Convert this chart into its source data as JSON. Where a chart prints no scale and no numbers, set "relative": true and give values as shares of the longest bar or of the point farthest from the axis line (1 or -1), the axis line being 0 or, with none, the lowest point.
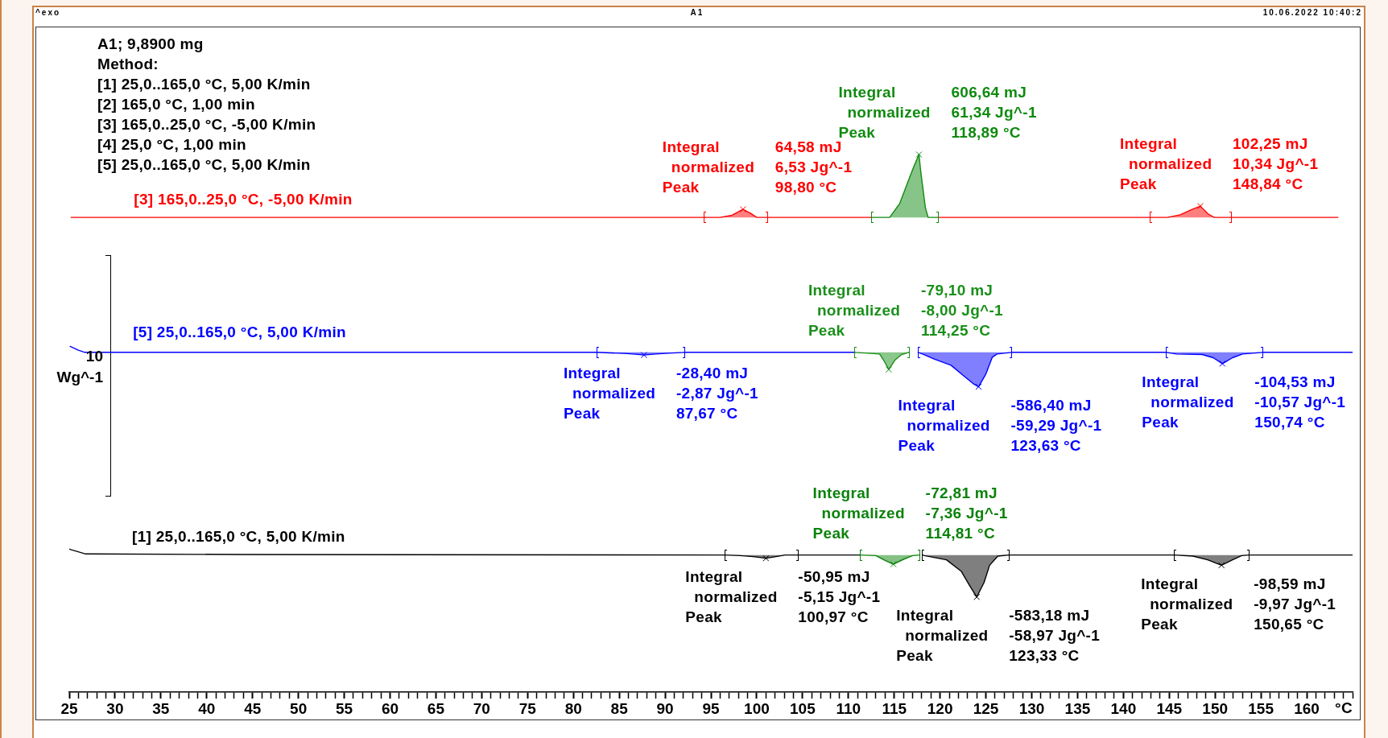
{
  "chart_data": {
    "type": "line",
    "title": "A1",
    "xlabel": "°C",
    "ylabel": "10\nWg^-1",
    "relative": true,
    "xlim": [
      25,
      165
    ],
    "xticks": [
      25,
      {
        "value": 26,
        "label": null
      },
      {
        "value": 27,
        "label": null
      },
      {
        "value": 28,
        "label": null
      },
      {
        "value": 29,
        "label": null
      },
      30,
      {
        "value": 31,
        "label": null
      },
      {
        "value": 32,
        "label": null
      },
      {
        "value": 33,
        "label": null
      },
      {
        "value": 34,
        "label": null
      },
      35,
      {
        "value": 36,
        "label": null
      },
      {
        "value": 37,
        "label": null
      },
      {
        "value": 38,
        "label": null
      },
      {
        "value": 39,
        "label": null
      },
      40,
      {
        "value": 41,
        "label": null
      },
      {
        "value": 42,
        "label": null
      },
      {
        "value": 43,
        "label": null
      },
      {
        "value": 44,
        "label": null
      },
      45,
      {
        "value": 46,
        "label": null
      },
      {
        "value": 47,
        "label": null
      },
      {
        "value": 48,
        "label": null
      },
      {
        "value": 49,
        "label": null
      },
      50,
      {
        "value": 51,
        "label": null
      },
      {
        "value": 52,
        "label": null
      },
      {
        "value": 53,
        "label": null
      },
      {
        "value": 54,
        "label": null
      },
      55,
      {
        "value": 56,
        "label": null
      },
      {
        "value": 57,
        "label": null
      },
      {
        "value": 58,
        "label": null
      },
      {
        "value": 59,
        "label": null
      },
      60,
      {
        "value": 61,
        "label": null
      },
      {
        "value": 62,
        "label": null
      },
      {
        "value": 63,
        "label": null
      },
      {
        "value": 64,
        "label": null
      },
      65,
      {
        "value": 66,
        "label": null
      },
      {
        "value": 67,
        "label": null
      },
      {
        "value": 68,
        "label": null
      },
      {
        "value": 69,
        "label": null
      },
      70,
      {
        "value": 71,
        "label": null
      },
      {
        "value": 72,
        "label": null
      },
      {
        "value": 73,
        "label": null
      },
      {
        "value": 74,
        "label": null
      },
      75,
      {
        "value": 76,
        "label": null
      },
      {
        "value": 77,
        "label": null
      },
      {
        "value": 78,
        "label": null
      },
      {
        "value": 79,
        "label": null
      },
      80,
      {
        "value": 81,
        "label": null
      },
      {
        "value": 82,
        "label": null
      },
      {
        "value": 83,
        "label": null
      },
      {
        "value": 84,
        "label": null
      },
      85,
      {
        "value": 86,
        "label": null
      },
      {
        "value": 87,
        "label": null
      },
      {
        "value": 88,
        "label": null
      },
      {
        "value": 89,
        "label": null
      },
      90,
      {
        "value": 91,
        "label": null
      },
      {
        "value": 92,
        "label": null
      },
      {
        "value": 93,
        "label": null
      },
      {
        "value": 94,
        "label": null
      },
      95,
      {
        "value": 96,
        "label": null
      },
      {
        "value": 97,
        "label": null
      },
      {
        "value": 98,
        "label": null
      },
      {
        "value": 99,
        "label": null
      },
      100,
      {
        "value": 101,
        "label": null
      },
      {
        "value": 102,
        "label": null
      },
      {
        "value": 103,
        "label": null
      },
      {
        "value": 104,
        "label": null
      },
      105,
      {
        "value": 106,
        "label": null
      },
      {
        "value": 107,
        "label": null
      },
      {
        "value": 108,
        "label": null
      },
      {
        "value": 109,
        "label": null
      },
      110,
      {
        "value": 111,
        "label": null
      },
      {
        "value": 112,
        "label": null
      },
      {
        "value": 113,
        "label": null
      },
      {
        "value": 114,
        "label": null
      },
      115,
      {
        "value": 116,
        "label": null
      },
      {
        "value": 117,
        "label": null
      },
      {
        "value": 118,
        "label": null
      },
      {
        "value": 119,
        "label": null
      },
      120,
      {
        "value": 121,
        "label": null
      },
      {
        "value": 122,
        "label": null
      },
      {
        "value": 123,
        "label": null
      },
      {
        "value": 124,
        "label": null
      },
      125,
      {
        "value": 126,
        "label": null
      },
      {
        "value": 127,
        "label": null
      },
      {
        "value": 128,
        "label": null
      },
      {
        "value": 129,
        "label": null
      },
      130,
      {
        "value": 131,
        "label": null
      },
      {
        "value": 132,
        "label": null
      },
      {
        "value": 133,
        "label": null
      },
      {
        "value": 134,
        "label": null
      },
      135,
      {
        "value": 136,
        "label": null
      },
      {
        "value": 137,
        "label": null
      },
      {
        "value": 138,
        "label": null
      },
      {
        "value": 139,
        "label": null
      },
      140,
      {
        "value": 141,
        "label": null
      },
      {
        "value": 142,
        "label": null
      },
      {
        "value": 143,
        "label": null
      },
      {
        "value": 144,
        "label": null
      },
      145,
      {
        "value": 146,
        "label": null
      },
      {
        "value": 147,
        "label": null
      },
      {
        "value": 148,
        "label": null
      },
      {
        "value": 149,
        "label": null
      },
      150,
      {
        "value": 151,
        "label": null
      },
      {
        "value": 152,
        "label": null
      },
      {
        "value": 153,
        "label": null
      },
      {
        "value": 154,
        "label": null
      },
      155,
      {
        "value": 156,
        "label": null
      },
      {
        "value": 157,
        "label": null
      },
      {
        "value": 158,
        "label": null
      },
      {
        "value": 159,
        "label": null
      },
      160,
      {
        "value": 161,
        "label": null
      },
      {
        "value": 162,
        "label": null
      },
      {
        "value": 163,
        "label": null
      },
      {
        "value": 164,
        "label": null
      },
      {
        "value": 165,
        "label": null
      }
    ],
    "series": [
      {
        "name": "[3] 165,0..25,0 °C, -5,00 K/min",
        "color": "#ff0000",
        "x": [
          25.2,
          94.3,
          97.8,
          101.2,
          112.5,
          116,
          119.8,
          142.9,
          147.4,
          151.8,
          163.4
        ],
        "values": [
          0.883,
          0.883,
          null,
          0.883,
          0.883,
          null,
          0.883,
          0.883,
          null,
          0.883,
          0.883
        ]
      },
      {
        "color": "#ff0000",
        "type": "area",
        "x": [
          94.3,
          96.0,
          97.3,
          98.5,
          99.3,
          100.0,
          101.2
        ],
        "values": [
          0.883,
          0.883,
          0.887,
          0.898,
          0.891,
          0.883,
          0.883
        ]
      },
      {
        "color": "#0f8a0f",
        "type": "area",
        "x": [
          112.5,
          114.5,
          115.6,
          116.6,
          117.1,
          117.7,
          117.9,
          118.4,
          118.7,
          119.8
        ],
        "values": [
          0.883,
          0.883,
          0.909,
          0.954,
          0.976,
          1.0,
          0.967,
          0.901,
          0.883,
          0.883
        ]
      },
      {
        "color": "#ff0000",
        "type": "area",
        "x": [
          142.9,
          144.8,
          146.2,
          147.5,
          148.4,
          149.2,
          149.9,
          151.8
        ],
        "values": [
          0.883,
          0.883,
          0.888,
          0.898,
          0.904,
          0.89,
          0.883,
          0.883
        ]
      },
      {
        "name": "[5] 25,0..165,0 °C, 5,00 K/min",
        "color": "#0000ff",
        "x": [
          25.1,
          26.0,
          26.7,
          82.6,
          87.5,
          92.1,
          110.7,
          119,
          127.8,
          144.7,
          150,
          155.2,
          165
        ],
        "values": [
          0.643,
          0.636,
          0.632,
          0.632,
          null,
          0.632,
          0.632,
          null,
          0.632,
          0.632,
          null,
          0.632,
          0.632
        ]
      },
      {
        "color": "#0000ff",
        "type": "area",
        "x": [
          82.6,
          85.5,
          86.5,
          87.7,
          89.0,
          90.0,
          92.1
        ],
        "values": [
          0.632,
          0.63,
          0.629,
          0.627,
          0.629,
          0.63,
          0.632
        ]
      },
      {
        "color": "#1a8f1a",
        "type": "area",
        "x": [
          110.7,
          113.4,
          113.9,
          114.4,
          115.1,
          115.8,
          116.6
        ],
        "values": [
          0.632,
          0.629,
          0.616,
          0.6,
          0.618,
          0.628,
          0.632
        ]
      },
      {
        "color": "#0000ff",
        "type": "area",
        "x": [
          117.6,
          118.1,
          119.3,
          121.2,
          122.6,
          123.6,
          124.2,
          125.0,
          125.7,
          126.2,
          127.8
        ],
        "values": [
          0.632,
          0.629,
          0.62,
          0.608,
          0.588,
          0.574,
          0.568,
          0.592,
          0.623,
          0.629,
          0.632
        ]
      },
      {
        "color": "#0000ff",
        "type": "area",
        "x": [
          144.7,
          145.8,
          148.6,
          149.8,
          150.8,
          151.9,
          153.0,
          155.2
        ],
        "values": [
          0.632,
          0.629,
          0.628,
          0.622,
          0.611,
          0.622,
          0.629,
          0.632
        ]
      },
      {
        "name": "[1] 25,0..165,0 °C, 5,00 K/min",
        "color": "#000000",
        "x": [
          25.0,
          26.8,
          44.1,
          96.6,
          100.5,
          104.5,
          111.3,
          120,
          127.5,
          145.6,
          149.6,
          153.7,
          165
        ],
        "values": [
          0.266,
          0.257,
          0.256,
          0.255,
          null,
          0.255,
          0.255,
          null,
          0.255,
          0.255,
          null,
          0.255,
          0.255
        ]
      },
      {
        "color": "#000000",
        "type": "area",
        "x": [
          96.6,
          98.2,
          99.6,
          101.0,
          102.1,
          103.1,
          104.5
        ],
        "values": [
          0.255,
          0.254,
          0.252,
          0.249,
          0.252,
          0.255,
          0.255
        ]
      },
      {
        "color": "#0b820b",
        "type": "area",
        "x": [
          111.3,
          113.0,
          114.0,
          114.9,
          116.0,
          117.0,
          117.8
        ],
        "values": [
          0.255,
          0.254,
          0.245,
          0.238,
          0.247,
          0.254,
          0.255
        ]
      },
      {
        "color": "#000000",
        "type": "area",
        "x": [
          118.1,
          118.3,
          120.7,
          122.3,
          123.2,
          124.0,
          124.8,
          125.4,
          126.3,
          127.5
        ],
        "values": [
          0.255,
          0.254,
          0.246,
          0.225,
          0.199,
          0.177,
          0.204,
          0.236,
          0.253,
          0.255
        ]
      },
      {
        "color": "#000000",
        "type": "area",
        "x": [
          145.6,
          147.6,
          149.2,
          150.7,
          151.9,
          152.9,
          153.7
        ],
        "values": [
          0.255,
          0.253,
          0.246,
          0.236,
          0.246,
          0.254,
          0.255
        ]
      }
    ],
    "annotations": [
      "^exo",
      "10.06.2022 10:40:2",
      "A1; 9,8900 mg",
      "Method:",
      "[1] 25,0..165,0 °C, 5,00 K/min",
      "[2] 165,0 °C, 1,00 min",
      "[3] 165,0..25,0 °C, -5,00 K/min",
      "[4] 25,0 °C, 1,00 min",
      "[5] 25,0..165,0 °C, 5,00 K/min",
      {
        "text": "Integral\nnormalized\nPeak",
        "x": 98.5,
        "y": 0.898
      },
      {
        "text": "64,58 mJ\n6,53 Jg^-1\n98,80 °C",
        "x": 98.5,
        "y": 0.898
      },
      {
        "text": "Integral\nnormalized\nPeak",
        "x": 117.7,
        "y": 1.0
      },
      {
        "text": "606,64 mJ\n61,34 Jg^-1\n118,89 °C",
        "x": 117.7,
        "y": 1.0
      },
      {
        "text": "Integral\nnormalized\nPeak",
        "x": 148.4,
        "y": 0.904
      },
      {
        "text": "102,25 mJ\n10,34 Jg^-1\n148,84 °C",
        "x": 148.4,
        "y": 0.904
      },
      {
        "text": "Integral\nnormalized\nPeak",
        "x": 87.7,
        "y": 0.627
      },
      {
        "text": "-28,40 mJ\n-2,87 Jg^-1\n87,67 °C",
        "x": 87.7,
        "y": 0.627
      },
      {
        "text": "Integral\nnormalized\nPeak",
        "x": 114.4,
        "y": 0.6
      },
      {
        "text": "-79,10 mJ\n-8,00 Jg^-1\n114,25 °C",
        "x": 114.4,
        "y": 0.6
      },
      {
        "text": "Integral\nnormalized\nPeak",
        "x": 124.2,
        "y": 0.568
      },
      {
        "text": "-586,40 mJ\n-59,29 Jg^-1\n123,63 °C",
        "x": 124.2,
        "y": 0.568
      },
      {
        "text": "Integral\nnormalized\nPeak",
        "x": 150.8,
        "y": 0.611
      },
      {
        "text": "-104,53 mJ\n-10,57 Jg^-1\n150,74 °C",
        "x": 150.8,
        "y": 0.611
      },
      {
        "text": "Integral\nnormalized\nPeak",
        "x": 101.0,
        "y": 0.249
      },
      {
        "text": "-50,95 mJ\n-5,15 Jg^-1\n100,97 °C",
        "x": 101.0,
        "y": 0.249
      },
      {
        "text": "Integral\nnormalized\nPeak",
        "x": 114.9,
        "y": 0.238
      },
      {
        "text": "-72,81 mJ\n-7,36 Jg^-1\n114,81 °C",
        "x": 114.9,
        "y": 0.238
      },
      {
        "text": "Integral\nnormalized\nPeak",
        "x": 124.0,
        "y": 0.177
      },
      {
        "text": "-583,18 mJ\n-58,97 Jg^-1\n123,33 °C",
        "x": 124.0,
        "y": 0.177
      },
      {
        "text": "Integral\nnormalized\nPeak",
        "x": 150.7,
        "y": 0.236
      },
      {
        "text": "-98,59 mJ\n-9,97 Jg^-1\n150,65 °C",
        "x": 150.7,
        "y": 0.236
      }
    ]
  }
}
